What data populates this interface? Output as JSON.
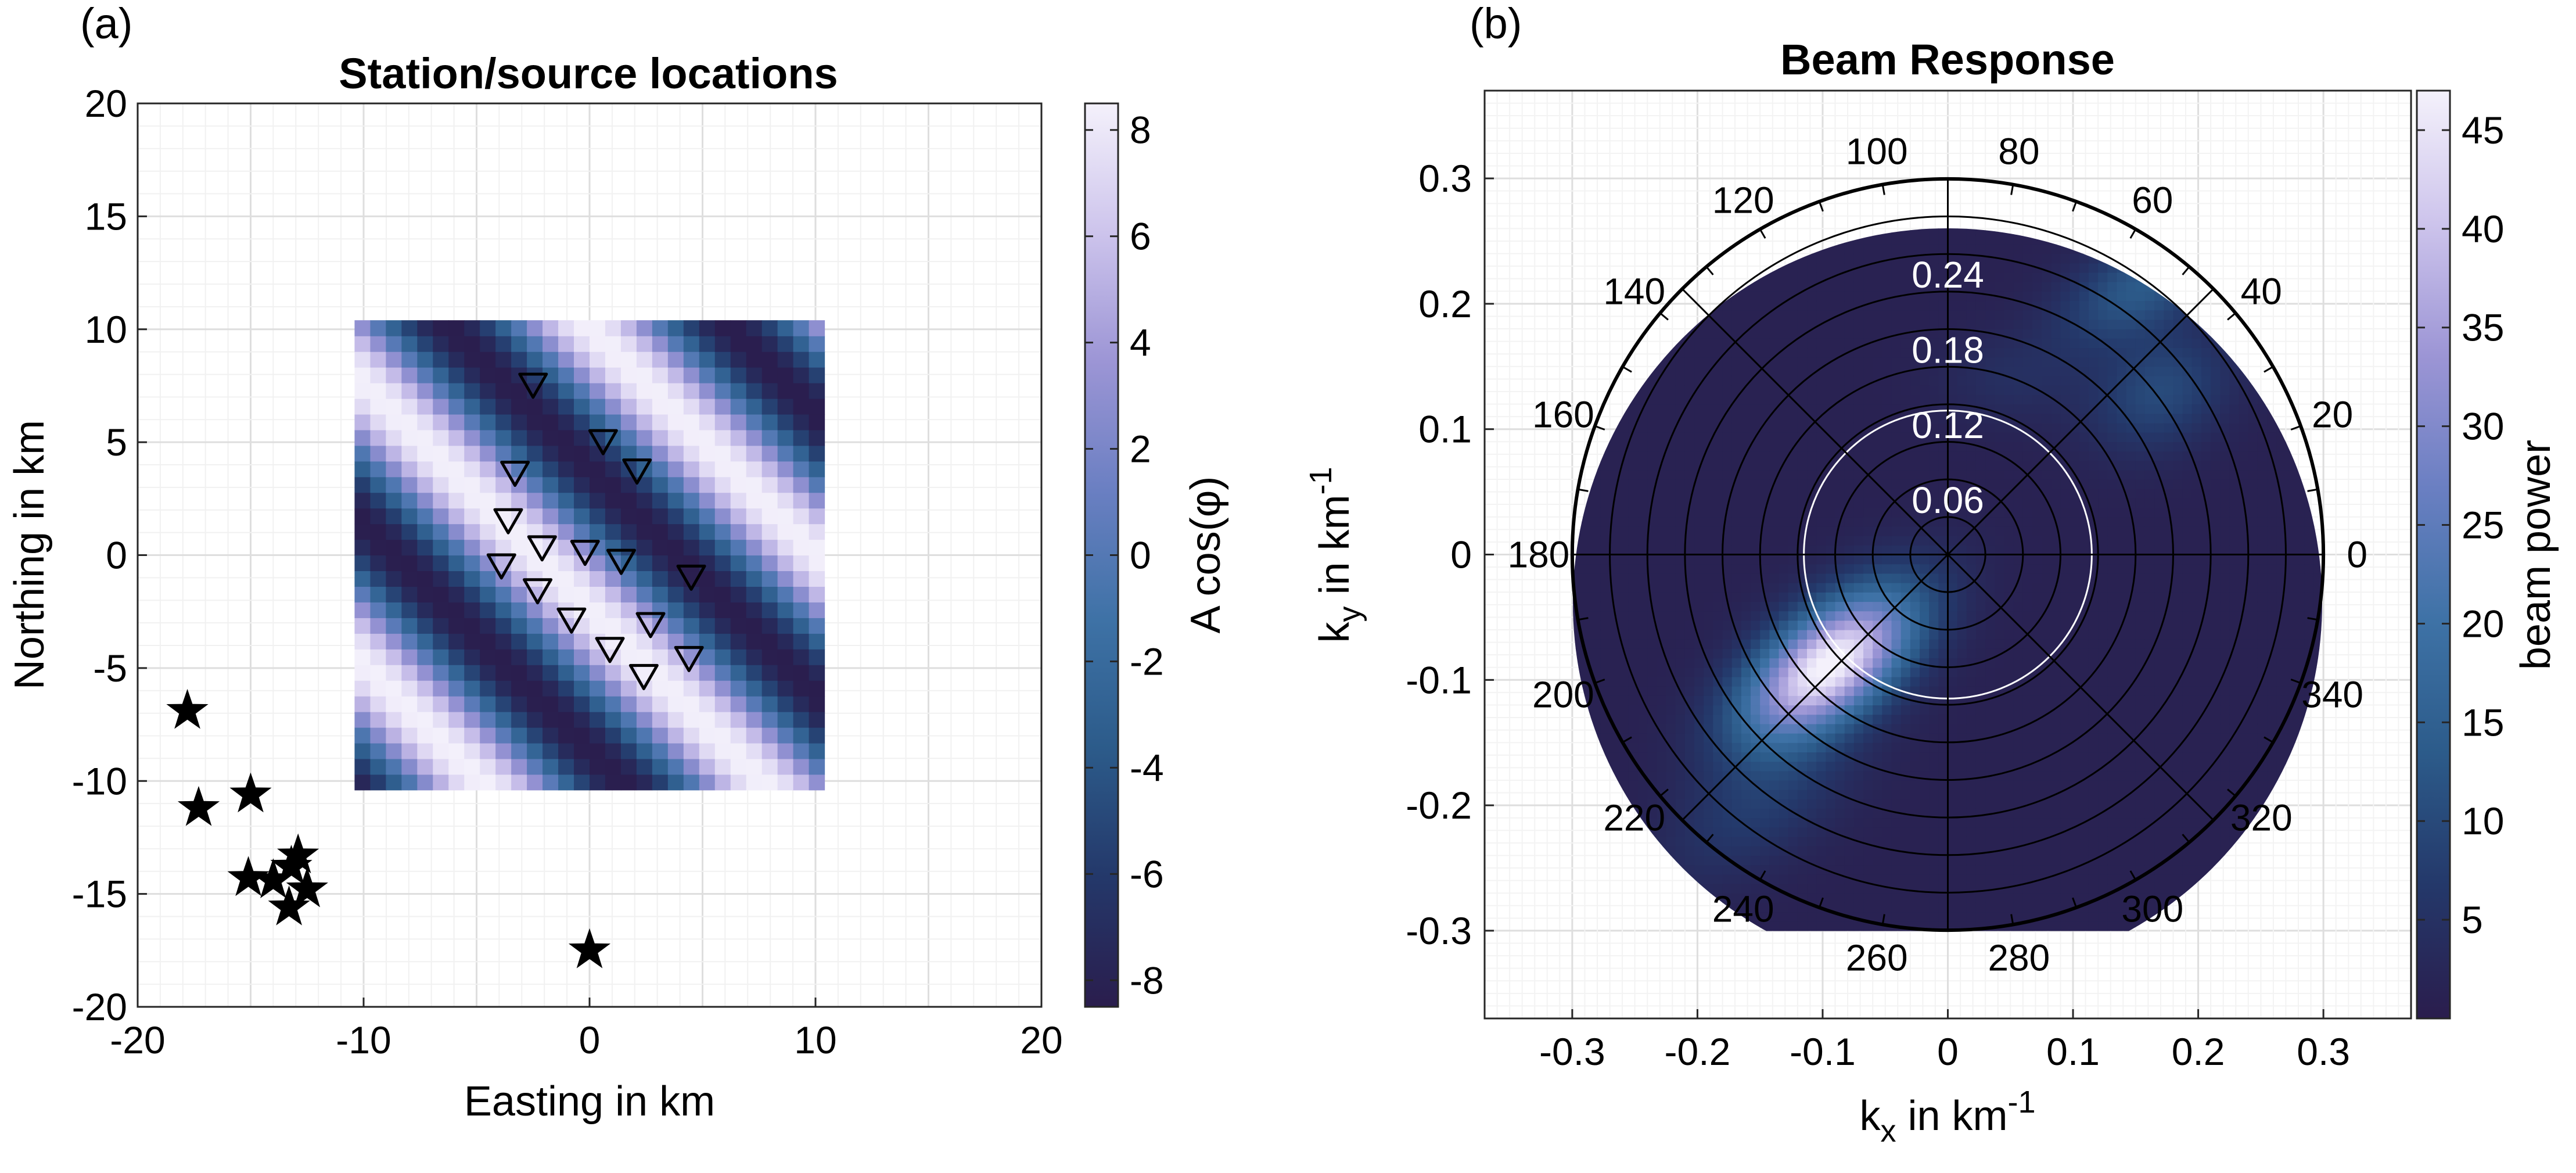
{
  "colors": {
    "colormap": [
      "#2a1d4d",
      "#24386a",
      "#2c5b8a",
      "#3e72a6",
      "#6a7fc2",
      "#9c95d5",
      "#cdc4ec",
      "#f4f1fb"
    ],
    "grid": "#e6e6e6",
    "axis": "#262626"
  },
  "chart_data": [
    {
      "type": "heatmap",
      "panel_label": "(a)",
      "title": "Station/source locations",
      "xlabel": "Easting in km",
      "ylabel": "Northing in km",
      "xlim": [
        -20,
        20
      ],
      "ylim": [
        -20,
        20
      ],
      "xticks": [
        -20,
        -10,
        0,
        10,
        20
      ],
      "yticks": [
        -20,
        -15,
        -10,
        -5,
        0,
        5,
        10,
        15,
        20
      ],
      "grid": true,
      "colorbar": {
        "label": "A cos(φ)",
        "limits": [
          -8.5,
          8.5
        ],
        "ticks": [
          -8,
          -6,
          -4,
          -2,
          0,
          2,
          4,
          6,
          8
        ]
      },
      "wavefield": {
        "extent_x": [
          -10.4,
          10.4
        ],
        "extent_y": [
          -10.4,
          10.4
        ],
        "amplitude": 8.5,
        "wavelength_km": 8.8,
        "propagation_azimuth_deg": 45,
        "cells": 30
      },
      "stations": [
        {
          "x": -2.5,
          "y": 7.5
        },
        {
          "x": 0.6,
          "y": 5.0
        },
        {
          "x": 2.1,
          "y": 3.7
        },
        {
          "x": -3.3,
          "y": 3.6
        },
        {
          "x": -3.6,
          "y": 1.5
        },
        {
          "x": -2.1,
          "y": 0.3
        },
        {
          "x": -0.2,
          "y": 0.1
        },
        {
          "x": 1.4,
          "y": -0.3
        },
        {
          "x": 4.5,
          "y": -1.0
        },
        {
          "x": -3.9,
          "y": -0.5
        },
        {
          "x": -2.3,
          "y": -1.6
        },
        {
          "x": -0.8,
          "y": -2.9
        },
        {
          "x": 2.7,
          "y": -3.1
        },
        {
          "x": 0.9,
          "y": -4.2
        },
        {
          "x": 4.4,
          "y": -4.6
        },
        {
          "x": 2.4,
          "y": -5.4
        }
      ],
      "sources": [
        {
          "x": -17.8,
          "y": -6.9
        },
        {
          "x": -17.3,
          "y": -11.2
        },
        {
          "x": -15.0,
          "y": -10.6
        },
        {
          "x": -15.1,
          "y": -14.3
        },
        {
          "x": -14.0,
          "y": -14.4
        },
        {
          "x": -13.2,
          "y": -13.8
        },
        {
          "x": -12.9,
          "y": -13.3
        },
        {
          "x": -12.5,
          "y": -14.8
        },
        {
          "x": -13.3,
          "y": -15.6
        },
        {
          "x": 0.0,
          "y": -17.5
        }
      ]
    },
    {
      "type": "heatmap",
      "panel_label": "(b)",
      "title": "Beam Response",
      "xlabel_main": "k",
      "xlabel_sub": "x",
      "xlabel_rest": " in km",
      "xlabel_sup": "-1",
      "ylabel_main": "k",
      "ylabel_sub": "y",
      "ylabel_rest": " in km",
      "ylabel_sup": "-1",
      "xlim": [
        -0.37,
        0.37
      ],
      "ylim": [
        -0.37,
        0.37
      ],
      "xticks": [
        -0.3,
        -0.2,
        -0.1,
        0,
        0.1,
        0.2,
        0.3
      ],
      "xtick_labels": [
        "-0.3",
        "-0.2",
        "-0.1",
        "0",
        "0.1",
        "0.2",
        "0.3"
      ],
      "yticks": [
        -0.3,
        -0.2,
        -0.1,
        0,
        0.1,
        0.2,
        0.3
      ],
      "ytick_labels": [
        "-0.3",
        "-0.2",
        "-0.1",
        "0",
        "0.1",
        "0.2",
        "0.3"
      ],
      "grid": true,
      "polar": {
        "rmax": 0.3,
        "rings": [
          0.03,
          0.06,
          0.09,
          0.12,
          0.15,
          0.18,
          0.21,
          0.24,
          0.27,
          0.3
        ],
        "radial_labels": [
          {
            "r": 0.06,
            "text": "0.06"
          },
          {
            "r": 0.12,
            "text": "0.12"
          },
          {
            "r": 0.18,
            "text": "0.18"
          },
          {
            "r": 0.24,
            "text": "0.24"
          }
        ],
        "highlight_ring": 0.115,
        "spokes_deg": [
          0,
          45,
          90,
          135,
          180,
          225,
          270,
          315
        ],
        "angle_ticks_deg": 10,
        "angle_labels": [
          {
            "deg": 0,
            "text": "0"
          },
          {
            "deg": 20,
            "text": "20"
          },
          {
            "deg": 40,
            "text": "40"
          },
          {
            "deg": 60,
            "text": "60"
          },
          {
            "deg": 80,
            "text": "80"
          },
          {
            "deg": 100,
            "text": "100"
          },
          {
            "deg": 120,
            "text": "120"
          },
          {
            "deg": 140,
            "text": "140"
          },
          {
            "deg": 160,
            "text": "160"
          },
          {
            "deg": 180,
            "text": "180"
          },
          {
            "deg": 200,
            "text": "200"
          },
          {
            "deg": 220,
            "text": "220"
          },
          {
            "deg": 240,
            "text": "240"
          },
          {
            "deg": 260,
            "text": "260"
          },
          {
            "deg": 280,
            "text": "280"
          },
          {
            "deg": 300,
            "text": "300"
          },
          {
            "deg": 320,
            "text": "320"
          },
          {
            "deg": 340,
            "text": "340"
          }
        ]
      },
      "beam_peaks": [
        {
          "kx": -0.095,
          "ky": -0.088,
          "sx": 0.055,
          "sy": 0.028,
          "rot_deg": 38,
          "amp": 47
        },
        {
          "kx": 0.155,
          "ky": 0.215,
          "sx": 0.05,
          "sy": 0.025,
          "rot_deg": 30,
          "amp": 12
        },
        {
          "kx": 0.17,
          "ky": 0.13,
          "sx": 0.04,
          "sy": 0.03,
          "rot_deg": 30,
          "amp": 9
        },
        {
          "kx": -0.15,
          "ky": -0.2,
          "sx": 0.06,
          "sy": 0.03,
          "rot_deg": 35,
          "amp": 6
        },
        {
          "kx": 0.05,
          "ky": 0.14,
          "sx": 0.04,
          "sy": 0.025,
          "rot_deg": 0,
          "amp": 3
        }
      ],
      "colorbar": {
        "label": "beam power",
        "limits": [
          0,
          47
        ],
        "ticks": [
          5,
          10,
          15,
          20,
          25,
          30,
          35,
          40,
          45
        ]
      }
    }
  ]
}
